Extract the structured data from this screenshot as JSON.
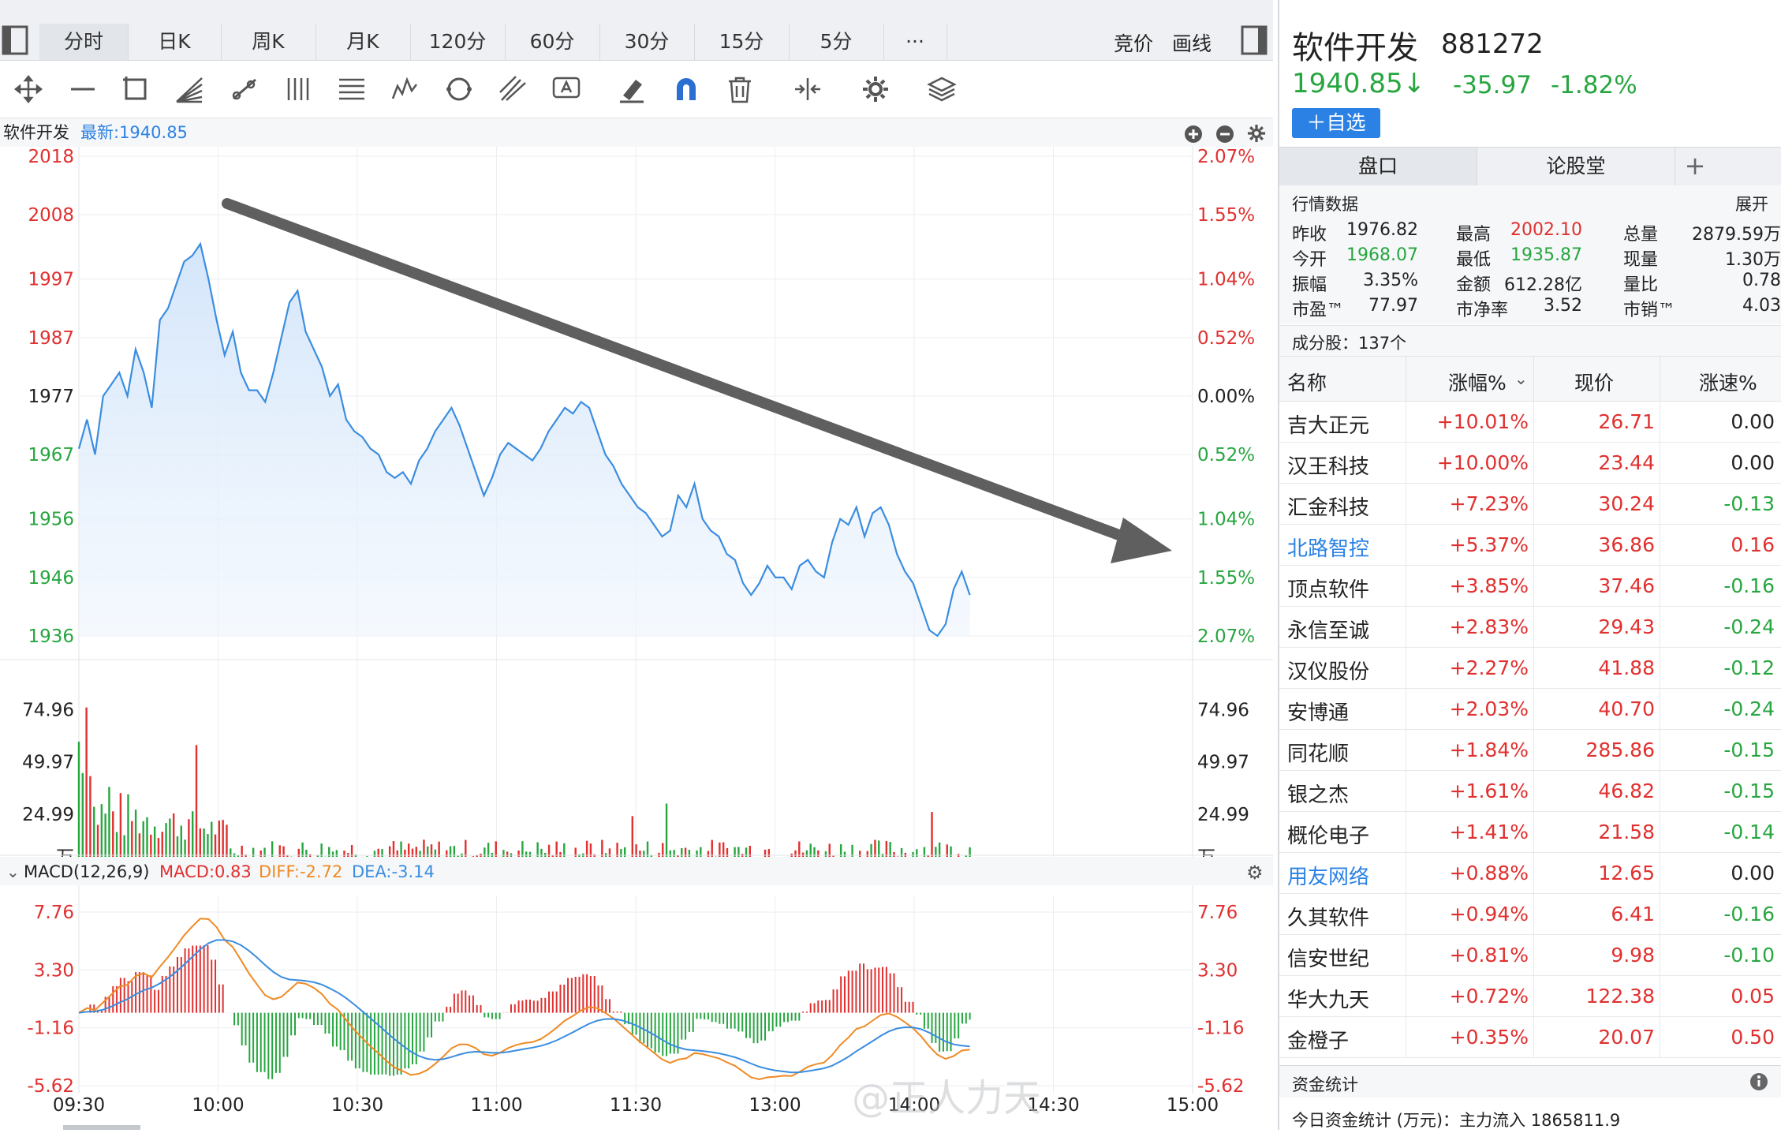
{
  "tabs": [
    "分时",
    "日K",
    "周K",
    "月K",
    "120分",
    "60分",
    "30分",
    "15分",
    "5分",
    "···"
  ],
  "toolbar_right": {
    "auction": "竞价",
    "draw": "画线"
  },
  "chart_header": {
    "name": "软件开发",
    "latest": "最新:1940.85"
  },
  "price_axis_left": [
    "2018",
    "2008",
    "1997",
    "1987",
    "1977",
    "1967",
    "1956",
    "1946",
    "1936"
  ],
  "price_axis_right": [
    "2.07%",
    "1.55%",
    "1.04%",
    "0.52%",
    "0.00%",
    "0.52%",
    "1.04%",
    "1.55%",
    "2.07%"
  ],
  "volume_axis": [
    "74.96",
    "49.97",
    "24.99",
    "万"
  ],
  "macd_header": {
    "label": "MACD(12,26,9)",
    "macd": "MACD:0.83",
    "diff": "DIFF:-2.72",
    "dea": "DEA:-3.14"
  },
  "macd_axis": [
    "7.76",
    "3.30",
    "-1.16",
    "-5.62"
  ],
  "time_axis": [
    "09:30",
    "10:00",
    "10:30",
    "11:00",
    "11:30",
    "13:00",
    "14:00",
    "14:30",
    "15:00"
  ],
  "watermark": "@正人力天",
  "colors": {
    "up": "#e0302f",
    "down": "#27a640",
    "line": "#3b8de0",
    "arrow": "#5f5f5f",
    "diff": "#f08a24",
    "dea": "#3b8de0"
  },
  "stock": {
    "name": "软件开发",
    "code": "881272",
    "price": "1940.85↓",
    "change": "-35.97",
    "pct": "-1.82%",
    "add_button": "＋自选"
  },
  "panel_tabs": [
    "盘口",
    "论股堂",
    "+"
  ],
  "quote_header": {
    "title": "行情数据",
    "expand": "展开"
  },
  "quote": [
    [
      {
        "k": "昨收",
        "v": "1976.82",
        "c": ""
      },
      {
        "k": "最高",
        "v": "2002.10",
        "c": "red"
      },
      {
        "k": "总量",
        "v": "2879.59万",
        "c": ""
      }
    ],
    [
      {
        "k": "今开",
        "v": "1968.07",
        "c": "green"
      },
      {
        "k": "最低",
        "v": "1935.87",
        "c": "green"
      },
      {
        "k": "现量",
        "v": "1.30万",
        "c": ""
      }
    ],
    [
      {
        "k": "振幅",
        "v": "3.35%",
        "c": ""
      },
      {
        "k": "金额",
        "v": "612.28亿",
        "c": ""
      },
      {
        "k": "量比",
        "v": "0.78",
        "c": ""
      }
    ],
    [
      {
        "k": "市盈™",
        "v": "77.97",
        "c": ""
      },
      {
        "k": "市净率",
        "v": "3.52",
        "c": ""
      },
      {
        "k": "市销™",
        "v": "4.03",
        "c": ""
      }
    ]
  ],
  "constituents": "成分股：137个",
  "table_headers": [
    "名称",
    "涨幅%",
    "现价",
    "涨速%"
  ],
  "rows": [
    {
      "name": "吉大正元",
      "chg": "+10.01%",
      "price": "26.71",
      "speed": "0.00",
      "nc": "",
      "sc": ""
    },
    {
      "name": "汉王科技",
      "chg": "+10.00%",
      "price": "23.44",
      "speed": "0.00",
      "nc": "",
      "sc": ""
    },
    {
      "name": "汇金科技",
      "chg": "+7.23%",
      "price": "30.24",
      "speed": "-0.13",
      "nc": "",
      "sc": "green"
    },
    {
      "name": "北路智控",
      "chg": "+5.37%",
      "price": "36.86",
      "speed": "0.16",
      "nc": "blue",
      "sc": "red"
    },
    {
      "name": "顶点软件",
      "chg": "+3.85%",
      "price": "37.46",
      "speed": "-0.16",
      "nc": "",
      "sc": "green"
    },
    {
      "name": "永信至诚",
      "chg": "+2.83%",
      "price": "29.43",
      "speed": "-0.24",
      "nc": "",
      "sc": "green"
    },
    {
      "name": "汉仪股份",
      "chg": "+2.27%",
      "price": "41.88",
      "speed": "-0.12",
      "nc": "",
      "sc": "green"
    },
    {
      "name": "安博通",
      "chg": "+2.03%",
      "price": "40.70",
      "speed": "-0.24",
      "nc": "",
      "sc": "green"
    },
    {
      "name": "同花顺",
      "chg": "+1.84%",
      "price": "285.86",
      "speed": "-0.15",
      "nc": "",
      "sc": "green"
    },
    {
      "name": "银之杰",
      "chg": "+1.61%",
      "price": "46.82",
      "speed": "-0.15",
      "nc": "",
      "sc": "green"
    },
    {
      "name": "概伦电子",
      "chg": "+1.41%",
      "price": "21.58",
      "speed": "-0.14",
      "nc": "",
      "sc": "green"
    },
    {
      "name": "用友网络",
      "chg": "+0.88%",
      "price": "12.65",
      "speed": "0.00",
      "nc": "blue",
      "sc": ""
    },
    {
      "name": "久其软件",
      "chg": "+0.94%",
      "price": "6.41",
      "speed": "-0.16",
      "nc": "",
      "sc": "green"
    },
    {
      "name": "信安世纪",
      "chg": "+0.81%",
      "price": "9.98",
      "speed": "-0.10",
      "nc": "",
      "sc": "green"
    },
    {
      "name": "华大九天",
      "chg": "+0.72%",
      "price": "122.38",
      "speed": "0.05",
      "nc": "",
      "sc": "red"
    },
    {
      "name": "金橙子",
      "chg": "+0.35%",
      "price": "20.07",
      "speed": "0.50",
      "nc": "",
      "sc": "red"
    }
  ],
  "fund": {
    "title": "资金统计",
    "line": "今日资金统计 (万元)：主力流入 1865811.9"
  },
  "chart_data": {
    "type": "line",
    "title": "软件开发",
    "y_range": [
      1936,
      2018
    ],
    "prev_close": 1976.82,
    "price_series": [
      1968,
      1973,
      1967,
      1977,
      1979,
      1981,
      1977,
      1985,
      1981,
      1975,
      1990,
      1992,
      1996,
      2000,
      2001,
      2003,
      1997,
      1990,
      1984,
      1988,
      1981,
      1978,
      1978,
      1976,
      1981,
      1987,
      1993,
      1995,
      1988,
      1985,
      1982,
      1977,
      1979,
      1973,
      1971,
      1970,
      1968,
      1967,
      1964,
      1963,
      1964,
      1962,
      1966,
      1968,
      1971,
      1973,
      1975,
      1972,
      1968,
      1964,
      1960,
      1963,
      1967,
      1969,
      1968,
      1967,
      1966,
      1968,
      1971,
      1973,
      1975,
      1974,
      1976,
      1975,
      1971,
      1967,
      1965,
      1962,
      1960,
      1958,
      1957,
      1955,
      1953,
      1954,
      1960,
      1958,
      1962,
      1956,
      1954,
      1953,
      1950,
      1949,
      1945,
      1943,
      1945,
      1948,
      1946,
      1946,
      1944,
      1948,
      1949,
      1947,
      1946,
      1952,
      1956,
      1955,
      1958,
      1953,
      1957,
      1958,
      1955,
      1950,
      1947,
      1945,
      1941,
      1937,
      1936,
      1938,
      1944,
      1947,
      1943
    ],
    "volume_ticks": [
      24.99,
      49.97,
      74.96
    ],
    "macd_range": [
      -5.62,
      7.76
    ],
    "macd_ticks": [
      7.76,
      3.3,
      -1.16,
      -5.62
    ],
    "x": [
      "09:30",
      "10:00",
      "10:30",
      "11:00",
      "11:30",
      "13:00",
      "14:00",
      "14:30",
      "15:00"
    ]
  }
}
